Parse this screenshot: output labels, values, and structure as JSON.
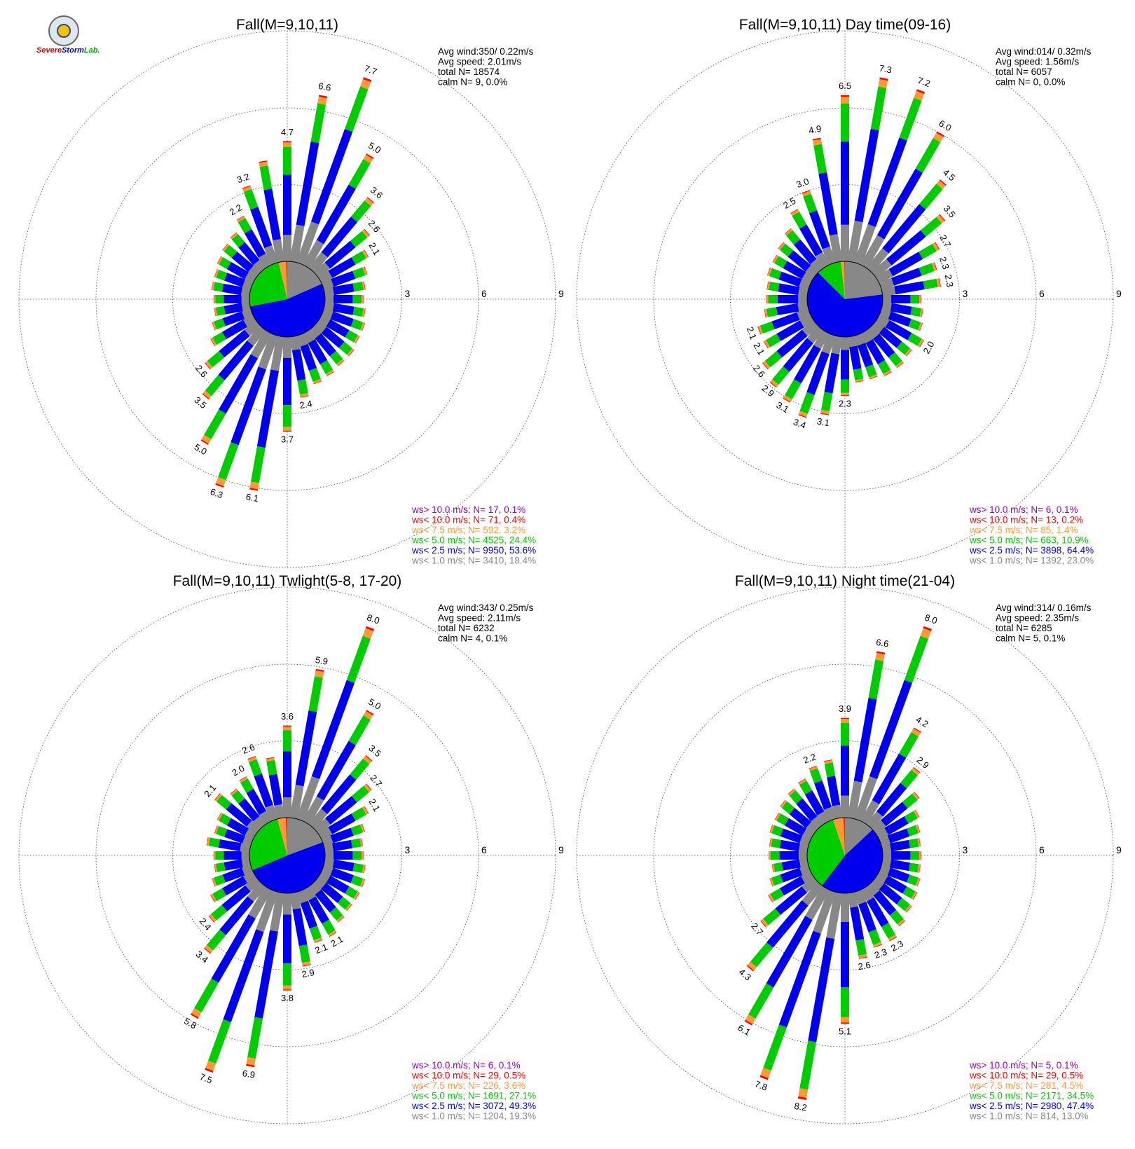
{
  "logo": {
    "part1": "Severe",
    "part2": "Storm",
    "part3": "Lab."
  },
  "colors": {
    "c1": "#888888",
    "c2": "#0000ee",
    "c3": "#00cc00",
    "c4": "#ff9933",
    "c5": "#ff0000",
    "c6": "#9900cc"
  },
  "chart_data": [
    {
      "type": "polar-bar",
      "title": "Fall(M=9,10,11)",
      "ring_labels": [
        "3",
        "6",
        "9"
      ],
      "stats": [
        "Avg wind:350/ 0.22m/s",
        "Avg speed: 2.01m/s",
        "total N=      18574",
        "calm N=     9,   0.0%"
      ],
      "legend": [
        {
          "text": "ws> 10.0 m/s; N=    17,  0.1%",
          "color": "#9900cc"
        },
        {
          "text": "ws< 10.0 m/s; N=    71,  0.4%",
          "color": "#ff0000"
        },
        {
          "text": "ws<  7.5 m/s; N=   592,  3.2%",
          "color": "#ff9933"
        },
        {
          "text": "ws<  5.0 m/s; N=  4525, 24.4%",
          "color": "#00cc00"
        },
        {
          "text": "ws<  2.5 m/s; N=  9950, 53.6%",
          "color": "#0000ee"
        },
        {
          "text": "ws<  1.0 m/s; N=  3410, 18.4%",
          "color": "#888888"
        }
      ],
      "pie": [
        18.4,
        53.6,
        24.4,
        3.2,
        0.4,
        0.1
      ],
      "directions": [
        {
          "angle": 0,
          "total": 4.7,
          "label": "4.7"
        },
        {
          "angle": 10,
          "total": 6.6,
          "label": "6.6"
        },
        {
          "angle": 20,
          "total": 7.7,
          "label": "7.7"
        },
        {
          "angle": 30,
          "total": 5.0,
          "label": "5.0"
        },
        {
          "angle": 40,
          "total": 3.6,
          "label": "3.6"
        },
        {
          "angle": 50,
          "total": 2.6,
          "label": "2.6"
        },
        {
          "angle": 60,
          "total": 2.1,
          "label": "2.1"
        },
        {
          "angle": 70,
          "total": 1.8,
          "label": ""
        },
        {
          "angle": 80,
          "total": 1.6,
          "label": ""
        },
        {
          "angle": 90,
          "total": 1.5,
          "label": ""
        },
        {
          "angle": 100,
          "total": 1.6,
          "label": ""
        },
        {
          "angle": 110,
          "total": 1.7,
          "label": ""
        },
        {
          "angle": 120,
          "total": 1.7,
          "label": ""
        },
        {
          "angle": 130,
          "total": 1.8,
          "label": ""
        },
        {
          "angle": 140,
          "total": 1.8,
          "label": ""
        },
        {
          "angle": 150,
          "total": 1.9,
          "label": ""
        },
        {
          "angle": 160,
          "total": 2.0,
          "label": ""
        },
        {
          "angle": 170,
          "total": 2.4,
          "label": "2.4"
        },
        {
          "angle": 180,
          "total": 3.7,
          "label": "3.7"
        },
        {
          "angle": 190,
          "total": 6.1,
          "label": "6.1"
        },
        {
          "angle": 200,
          "total": 6.3,
          "label": "6.3"
        },
        {
          "angle": 210,
          "total": 5.0,
          "label": "5.0"
        },
        {
          "angle": 220,
          "total": 3.5,
          "label": "3.5"
        },
        {
          "angle": 230,
          "total": 2.6,
          "label": "2.6"
        },
        {
          "angle": 240,
          "total": 1.9,
          "label": ""
        },
        {
          "angle": 250,
          "total": 1.6,
          "label": ""
        },
        {
          "angle": 260,
          "total": 1.4,
          "label": ""
        },
        {
          "angle": 270,
          "total": 1.4,
          "label": ""
        },
        {
          "angle": 280,
          "total": 1.5,
          "label": ""
        },
        {
          "angle": 290,
          "total": 1.5,
          "label": ""
        },
        {
          "angle": 300,
          "total": 1.6,
          "label": ""
        },
        {
          "angle": 310,
          "total": 1.7,
          "label": ""
        },
        {
          "angle": 320,
          "total": 1.8,
          "label": ""
        },
        {
          "angle": 330,
          "total": 2.2,
          "label": "2.2"
        },
        {
          "angle": 340,
          "total": 3.2,
          "label": "3.2"
        },
        {
          "angle": 350,
          "total": 4.0,
          "label": ""
        }
      ]
    },
    {
      "type": "polar-bar",
      "title": "Fall(M=9,10,11) Day time(09-16)",
      "ring_labels": [
        "3",
        "6",
        "9"
      ],
      "stats": [
        "Avg wind:014/ 0.32m/s",
        "Avg speed: 1.56m/s",
        "total N=       6057",
        "calm N=     0,   0.0%"
      ],
      "legend": [
        {
          "text": "ws> 10.0 m/s; N=     6,  0.1%",
          "color": "#9900cc"
        },
        {
          "text": "ws< 10.0 m/s; N=    13,  0.2%",
          "color": "#ff0000"
        },
        {
          "text": "ws<  7.5 m/s; N=    85,  1.4%",
          "color": "#ff9933"
        },
        {
          "text": "ws<  5.0 m/s; N=   663, 10.9%",
          "color": "#00cc00"
        },
        {
          "text": "ws<  2.5 m/s; N=  3898, 64.4%",
          "color": "#0000ee"
        },
        {
          "text": "ws<  1.0 m/s; N=  1392, 23.0%",
          "color": "#888888"
        }
      ],
      "pie": [
        23.0,
        64.4,
        10.9,
        1.4,
        0.2,
        0.1
      ],
      "directions": [
        {
          "angle": 0,
          "total": 6.5,
          "label": "6.5"
        },
        {
          "angle": 10,
          "total": 7.3,
          "label": "7.3"
        },
        {
          "angle": 20,
          "total": 7.2,
          "label": "7.2"
        },
        {
          "angle": 30,
          "total": 6.0,
          "label": "6.0"
        },
        {
          "angle": 40,
          "total": 4.5,
          "label": "4.5"
        },
        {
          "angle": 50,
          "total": 3.5,
          "label": "3.5"
        },
        {
          "angle": 60,
          "total": 2.7,
          "label": "2.7"
        },
        {
          "angle": 70,
          "total": 2.3,
          "label": "2.3"
        },
        {
          "angle": 80,
          "total": 2.3,
          "label": "2.3"
        },
        {
          "angle": 90,
          "total": 1.5,
          "label": ""
        },
        {
          "angle": 100,
          "total": 1.6,
          "label": ""
        },
        {
          "angle": 110,
          "total": 1.7,
          "label": ""
        },
        {
          "angle": 120,
          "total": 2.0,
          "label": "2.0"
        },
        {
          "angle": 130,
          "total": 1.8,
          "label": ""
        },
        {
          "angle": 140,
          "total": 1.9,
          "label": ""
        },
        {
          "angle": 150,
          "total": 1.9,
          "label": ""
        },
        {
          "angle": 160,
          "total": 1.8,
          "label": ""
        },
        {
          "angle": 170,
          "total": 1.8,
          "label": ""
        },
        {
          "angle": 180,
          "total": 2.3,
          "label": "2.3"
        },
        {
          "angle": 190,
          "total": 3.1,
          "label": "3.1"
        },
        {
          "angle": 200,
          "total": 3.4,
          "label": "3.4"
        },
        {
          "angle": 210,
          "total": 3.1,
          "label": "3.1"
        },
        {
          "angle": 220,
          "total": 2.9,
          "label": "2.9"
        },
        {
          "angle": 230,
          "total": 2.6,
          "label": "2.6"
        },
        {
          "angle": 240,
          "total": 2.1,
          "label": "2.1"
        },
        {
          "angle": 250,
          "total": 2.1,
          "label": "2.1"
        },
        {
          "angle": 260,
          "total": 1.7,
          "label": ""
        },
        {
          "angle": 270,
          "total": 1.6,
          "label": ""
        },
        {
          "angle": 280,
          "total": 1.6,
          "label": ""
        },
        {
          "angle": 290,
          "total": 1.7,
          "label": ""
        },
        {
          "angle": 300,
          "total": 1.7,
          "label": ""
        },
        {
          "angle": 310,
          "total": 1.8,
          "label": ""
        },
        {
          "angle": 320,
          "total": 2.0,
          "label": ""
        },
        {
          "angle": 330,
          "total": 2.5,
          "label": "2.5"
        },
        {
          "angle": 340,
          "total": 3.0,
          "label": "3.0"
        },
        {
          "angle": 350,
          "total": 4.9,
          "label": "4.9"
        }
      ]
    },
    {
      "type": "polar-bar",
      "title": "Fall(M=9,10,11) Twlight(5-8, 17-20)",
      "ring_labels": [
        "3",
        "6",
        "9"
      ],
      "stats": [
        "Avg wind:343/ 0.25m/s",
        "Avg speed: 2.11m/s",
        "total N=       6232",
        "calm N=     4,   0.1%"
      ],
      "legend": [
        {
          "text": "ws> 10.0 m/s; N=     6,  0.1%",
          "color": "#9900cc"
        },
        {
          "text": "ws< 10.0 m/s; N=    29,  0.5%",
          "color": "#ff0000"
        },
        {
          "text": "ws<  7.5 m/s; N=   226,  3.6%",
          "color": "#ff9933"
        },
        {
          "text": "ws<  5.0 m/s; N=  1691, 27.1%",
          "color": "#00cc00"
        },
        {
          "text": "ws<  2.5 m/s; N=  3072, 49.3%",
          "color": "#0000ee"
        },
        {
          "text": "ws<  1.0 m/s; N=  1204, 19.3%",
          "color": "#888888"
        }
      ],
      "pie": [
        19.3,
        49.3,
        27.1,
        3.6,
        0.5,
        0.1
      ],
      "directions": [
        {
          "angle": 0,
          "total": 3.6,
          "label": "3.6"
        },
        {
          "angle": 10,
          "total": 5.9,
          "label": "5.9"
        },
        {
          "angle": 20,
          "total": 8.0,
          "label": "8.0"
        },
        {
          "angle": 30,
          "total": 5.0,
          "label": "5.0"
        },
        {
          "angle": 40,
          "total": 3.5,
          "label": "3.5"
        },
        {
          "angle": 50,
          "total": 2.7,
          "label": "2.7"
        },
        {
          "angle": 60,
          "total": 2.1,
          "label": "2.1"
        },
        {
          "angle": 70,
          "total": 1.7,
          "label": ""
        },
        {
          "angle": 80,
          "total": 1.5,
          "label": ""
        },
        {
          "angle": 90,
          "total": 1.5,
          "label": ""
        },
        {
          "angle": 100,
          "total": 1.6,
          "label": ""
        },
        {
          "angle": 110,
          "total": 1.7,
          "label": ""
        },
        {
          "angle": 120,
          "total": 1.7,
          "label": ""
        },
        {
          "angle": 130,
          "total": 1.7,
          "label": ""
        },
        {
          "angle": 140,
          "total": 1.8,
          "label": ""
        },
        {
          "angle": 150,
          "total": 2.1,
          "label": "2.1"
        },
        {
          "angle": 160,
          "total": 2.1,
          "label": "2.1"
        },
        {
          "angle": 170,
          "total": 2.9,
          "label": "2.9"
        },
        {
          "angle": 180,
          "total": 3.8,
          "label": "3.8"
        },
        {
          "angle": 190,
          "total": 6.9,
          "label": "6.9"
        },
        {
          "angle": 200,
          "total": 7.5,
          "label": "7.5"
        },
        {
          "angle": 210,
          "total": 5.8,
          "label": "5.8"
        },
        {
          "angle": 220,
          "total": 3.4,
          "label": "3.4"
        },
        {
          "angle": 230,
          "total": 2.4,
          "label": "2.4"
        },
        {
          "angle": 240,
          "total": 1.9,
          "label": ""
        },
        {
          "angle": 250,
          "total": 1.6,
          "label": ""
        },
        {
          "angle": 260,
          "total": 1.4,
          "label": ""
        },
        {
          "angle": 270,
          "total": 1.4,
          "label": ""
        },
        {
          "angle": 280,
          "total": 1.7,
          "label": ""
        },
        {
          "angle": 290,
          "total": 1.5,
          "label": ""
        },
        {
          "angle": 300,
          "total": 1.6,
          "label": ""
        },
        {
          "angle": 310,
          "total": 2.1,
          "label": "2.1"
        },
        {
          "angle": 320,
          "total": 1.8,
          "label": ""
        },
        {
          "angle": 330,
          "total": 2.0,
          "label": "2.0"
        },
        {
          "angle": 340,
          "total": 2.6,
          "label": "2.6"
        },
        {
          "angle": 350,
          "total": 2.4,
          "label": ""
        }
      ]
    },
    {
      "type": "polar-bar",
      "title": "Fall(M=9,10,11) Night time(21-04)",
      "ring_labels": [
        "3",
        "6",
        "9"
      ],
      "stats": [
        "Avg wind:314/ 0.16m/s",
        "Avg speed: 2.35m/s",
        "total N=       6285",
        "calm N=     5,   0.1%"
      ],
      "legend": [
        {
          "text": "ws> 10.0 m/s; N=     5,  0.1%",
          "color": "#9900cc"
        },
        {
          "text": "ws< 10.0 m/s; N=    29,  0.5%",
          "color": "#ff0000"
        },
        {
          "text": "ws<  7.5 m/s; N=   281,  4.5%",
          "color": "#ff9933"
        },
        {
          "text": "ws<  5.0 m/s; N=  2171, 34.5%",
          "color": "#00cc00"
        },
        {
          "text": "ws<  2.5 m/s; N=  2980, 47.4%",
          "color": "#0000ee"
        },
        {
          "text": "ws<  1.0 m/s; N=   814, 13.0%",
          "color": "#888888"
        }
      ],
      "pie": [
        13.0,
        47.4,
        34.5,
        4.5,
        0.5,
        0.1
      ],
      "directions": [
        {
          "angle": 0,
          "total": 3.9,
          "label": "3.9"
        },
        {
          "angle": 10,
          "total": 6.6,
          "label": "6.6"
        },
        {
          "angle": 20,
          "total": 8.0,
          "label": "8.0"
        },
        {
          "angle": 30,
          "total": 4.2,
          "label": "4.2"
        },
        {
          "angle": 40,
          "total": 2.9,
          "label": "2.9"
        },
        {
          "angle": 50,
          "total": 2.2,
          "label": ""
        },
        {
          "angle": 60,
          "total": 1.8,
          "label": ""
        },
        {
          "angle": 70,
          "total": 1.6,
          "label": ""
        },
        {
          "angle": 80,
          "total": 1.5,
          "label": ""
        },
        {
          "angle": 90,
          "total": 1.5,
          "label": ""
        },
        {
          "angle": 100,
          "total": 1.5,
          "label": ""
        },
        {
          "angle": 110,
          "total": 1.6,
          "label": ""
        },
        {
          "angle": 120,
          "total": 1.7,
          "label": ""
        },
        {
          "angle": 130,
          "total": 1.8,
          "label": ""
        },
        {
          "angle": 140,
          "total": 2.0,
          "label": ""
        },
        {
          "angle": 150,
          "total": 2.3,
          "label": "2.3"
        },
        {
          "angle": 160,
          "total": 2.3,
          "label": "2.3"
        },
        {
          "angle": 170,
          "total": 2.6,
          "label": "2.6"
        },
        {
          "angle": 180,
          "total": 5.1,
          "label": "5.1"
        },
        {
          "angle": 190,
          "total": 8.2,
          "label": "8.2"
        },
        {
          "angle": 200,
          "total": 7.8,
          "label": "7.8"
        },
        {
          "angle": 210,
          "total": 6.1,
          "label": "6.1"
        },
        {
          "angle": 220,
          "total": 4.3,
          "label": "4.3"
        },
        {
          "angle": 230,
          "total": 2.7,
          "label": "2.7"
        },
        {
          "angle": 240,
          "total": 1.9,
          "label": ""
        },
        {
          "angle": 250,
          "total": 1.6,
          "label": ""
        },
        {
          "angle": 260,
          "total": 1.4,
          "label": ""
        },
        {
          "angle": 270,
          "total": 1.5,
          "label": ""
        },
        {
          "angle": 280,
          "total": 1.5,
          "label": ""
        },
        {
          "angle": 290,
          "total": 1.6,
          "label": ""
        },
        {
          "angle": 300,
          "total": 1.6,
          "label": ""
        },
        {
          "angle": 310,
          "total": 1.7,
          "label": ""
        },
        {
          "angle": 320,
          "total": 1.8,
          "label": ""
        },
        {
          "angle": 330,
          "total": 1.9,
          "label": ""
        },
        {
          "angle": 340,
          "total": 2.2,
          "label": "2.2"
        },
        {
          "angle": 350,
          "total": 2.3,
          "label": ""
        }
      ]
    }
  ]
}
